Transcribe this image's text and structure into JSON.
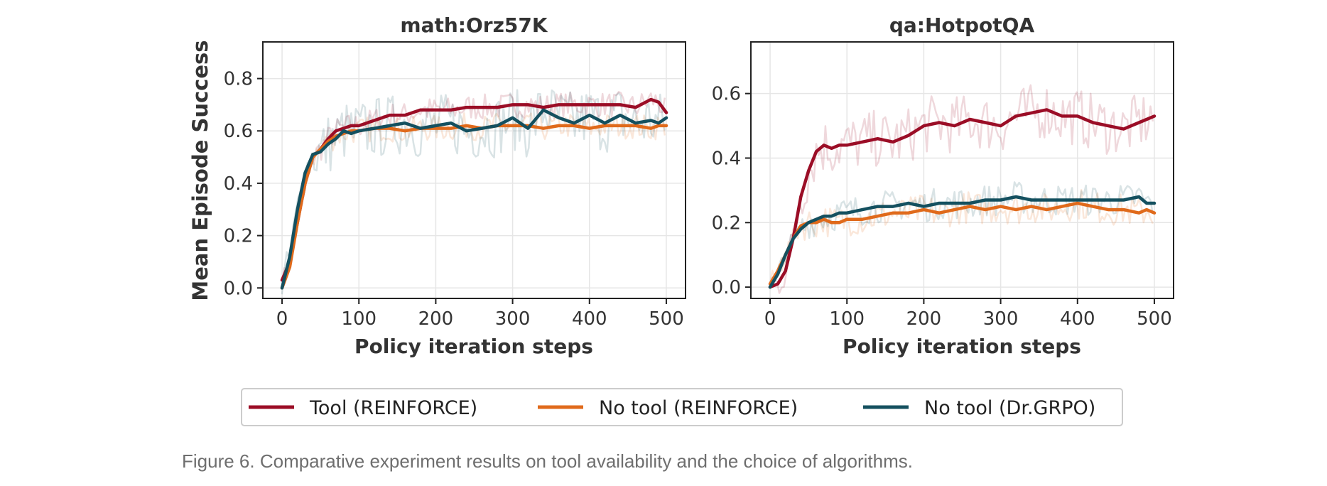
{
  "figure": {
    "caption": "Figure 6. Comparative experiment results on tool availability and the choice of algorithms.",
    "ylabel": "Mean Episode Success",
    "legend": {
      "placement": "bottom-center",
      "entries": [
        {
          "label": "Tool (REINFORCE)",
          "color": "#9b0d26"
        },
        {
          "label": "No tool (REINFORCE)",
          "color": "#e06a1b"
        },
        {
          "label": "No tool (Dr.GRPO)",
          "color": "#14505f"
        }
      ]
    }
  },
  "chart_data": [
    {
      "type": "line",
      "title": "math:Orz57K",
      "xlabel": "Policy iteration steps",
      "ylabel": "Mean Episode Success",
      "xlim": [
        -25,
        525
      ],
      "ylim": [
        -0.04,
        0.94
      ],
      "xticks": [
        0,
        100,
        200,
        300,
        400,
        500
      ],
      "yticks": [
        0.0,
        0.2,
        0.4,
        0.6,
        0.8
      ],
      "ytick_labels": [
        "0.0",
        "0.2",
        "0.4",
        "0.6",
        "0.8"
      ],
      "grid": true,
      "series": [
        {
          "name": "Tool (REINFORCE)",
          "color": "#9b0d26",
          "x": [
            0,
            10,
            20,
            30,
            40,
            50,
            60,
            70,
            80,
            90,
            100,
            120,
            140,
            160,
            180,
            200,
            220,
            240,
            260,
            280,
            300,
            320,
            340,
            360,
            380,
            400,
            420,
            440,
            460,
            480,
            490,
            500
          ],
          "y": [
            0.03,
            0.1,
            0.25,
            0.4,
            0.5,
            0.53,
            0.57,
            0.6,
            0.61,
            0.62,
            0.62,
            0.64,
            0.66,
            0.66,
            0.68,
            0.68,
            0.68,
            0.69,
            0.69,
            0.69,
            0.7,
            0.7,
            0.69,
            0.7,
            0.7,
            0.7,
            0.7,
            0.7,
            0.69,
            0.72,
            0.71,
            0.67
          ]
        },
        {
          "name": "No tool (REINFORCE)",
          "color": "#e06a1b",
          "x": [
            0,
            10,
            20,
            30,
            40,
            50,
            60,
            70,
            80,
            90,
            100,
            120,
            140,
            160,
            180,
            200,
            220,
            240,
            260,
            280,
            300,
            320,
            340,
            360,
            380,
            400,
            420,
            440,
            460,
            480,
            490,
            500
          ],
          "y": [
            0.0,
            0.08,
            0.25,
            0.4,
            0.5,
            0.53,
            0.56,
            0.58,
            0.59,
            0.6,
            0.6,
            0.61,
            0.61,
            0.6,
            0.61,
            0.61,
            0.61,
            0.62,
            0.61,
            0.62,
            0.62,
            0.62,
            0.61,
            0.62,
            0.62,
            0.61,
            0.62,
            0.62,
            0.62,
            0.61,
            0.62,
            0.62
          ]
        },
        {
          "name": "No tool (Dr.GRPO)",
          "color": "#14505f",
          "x": [
            0,
            10,
            20,
            30,
            40,
            50,
            60,
            70,
            80,
            90,
            100,
            120,
            140,
            160,
            180,
            200,
            220,
            240,
            260,
            280,
            300,
            320,
            340,
            360,
            380,
            400,
            420,
            440,
            460,
            480,
            490,
            500
          ],
          "y": [
            0.0,
            0.12,
            0.3,
            0.44,
            0.51,
            0.52,
            0.55,
            0.57,
            0.6,
            0.59,
            0.6,
            0.61,
            0.62,
            0.63,
            0.61,
            0.62,
            0.63,
            0.6,
            0.61,
            0.62,
            0.65,
            0.61,
            0.68,
            0.65,
            0.63,
            0.66,
            0.63,
            0.66,
            0.63,
            0.64,
            0.63,
            0.65
          ]
        }
      ]
    },
    {
      "type": "line",
      "title": "qa:HotpotQA",
      "xlabel": "Policy iteration steps",
      "ylabel": "",
      "xlim": [
        -25,
        525
      ],
      "ylim": [
        -0.035,
        0.76
      ],
      "xticks": [
        0,
        100,
        200,
        300,
        400,
        500
      ],
      "yticks": [
        0.0,
        0.2,
        0.4,
        0.6
      ],
      "ytick_labels": [
        "0.0",
        "0.2",
        "0.4",
        "0.6"
      ],
      "grid": true,
      "series": [
        {
          "name": "Tool (REINFORCE)",
          "color": "#9b0d26",
          "x": [
            0,
            10,
            20,
            30,
            40,
            50,
            60,
            70,
            80,
            90,
            100,
            120,
            140,
            160,
            180,
            200,
            220,
            240,
            260,
            280,
            300,
            320,
            340,
            360,
            380,
            400,
            420,
            440,
            460,
            480,
            490,
            500
          ],
          "y": [
            0.0,
            0.01,
            0.05,
            0.15,
            0.28,
            0.36,
            0.42,
            0.44,
            0.43,
            0.44,
            0.44,
            0.45,
            0.46,
            0.45,
            0.47,
            0.5,
            0.51,
            0.5,
            0.52,
            0.51,
            0.5,
            0.53,
            0.54,
            0.55,
            0.53,
            0.53,
            0.51,
            0.5,
            0.49,
            0.51,
            0.52,
            0.53
          ]
        },
        {
          "name": "No tool (REINFORCE)",
          "color": "#e06a1b",
          "x": [
            0,
            10,
            20,
            30,
            40,
            50,
            60,
            70,
            80,
            90,
            100,
            120,
            140,
            160,
            180,
            200,
            220,
            240,
            260,
            280,
            300,
            320,
            340,
            360,
            380,
            400,
            420,
            440,
            460,
            480,
            490,
            500
          ],
          "y": [
            0.01,
            0.05,
            0.1,
            0.15,
            0.19,
            0.2,
            0.2,
            0.21,
            0.2,
            0.2,
            0.21,
            0.21,
            0.22,
            0.23,
            0.23,
            0.24,
            0.23,
            0.24,
            0.25,
            0.24,
            0.25,
            0.24,
            0.25,
            0.24,
            0.25,
            0.26,
            0.25,
            0.24,
            0.24,
            0.23,
            0.24,
            0.23
          ]
        },
        {
          "name": "No tool (Dr.GRPO)",
          "color": "#14505f",
          "x": [
            0,
            10,
            20,
            30,
            40,
            50,
            60,
            70,
            80,
            90,
            100,
            120,
            140,
            160,
            180,
            200,
            220,
            240,
            260,
            280,
            300,
            320,
            340,
            360,
            380,
            400,
            420,
            440,
            460,
            480,
            490,
            500
          ],
          "y": [
            0.0,
            0.04,
            0.1,
            0.15,
            0.18,
            0.2,
            0.21,
            0.22,
            0.22,
            0.23,
            0.23,
            0.24,
            0.25,
            0.25,
            0.26,
            0.25,
            0.26,
            0.26,
            0.26,
            0.27,
            0.27,
            0.28,
            0.27,
            0.27,
            0.27,
            0.27,
            0.27,
            0.27,
            0.27,
            0.28,
            0.26,
            0.26
          ]
        }
      ]
    }
  ]
}
